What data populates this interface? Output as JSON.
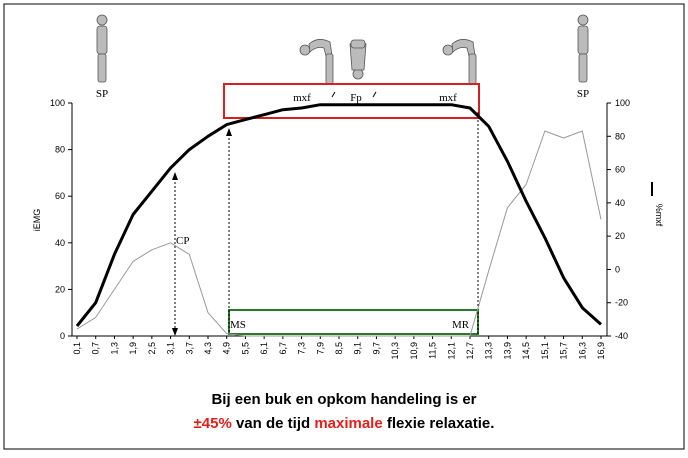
{
  "chart_data": {
    "type": "line",
    "categories": [
      "0,1",
      "0,7",
      "1,3",
      "1,9",
      "2,5",
      "3,1",
      "3,7",
      "4,3",
      "4,9",
      "5,5",
      "6,1",
      "6,7",
      "7,3",
      "7,9",
      "8,5",
      "9,1",
      "9,7",
      "10,3",
      "10,9",
      "11,5",
      "12,1",
      "12,7",
      "13,3",
      "13,9",
      "14,5",
      "15,1",
      "15,7",
      "16,3",
      "16,9"
    ],
    "ylabel": "iEMG",
    "y2label": "%mxf",
    "ylim": [
      0,
      100
    ],
    "yticks": [
      0,
      20,
      40,
      60,
      80,
      100
    ],
    "y2lim": [
      -40,
      100
    ],
    "y2ticks": [
      -40,
      -20,
      0,
      20,
      40,
      60,
      80,
      100
    ],
    "series": [
      {
        "color": "#999999",
        "width": 1,
        "values": [
          3,
          8,
          20,
          32,
          37,
          40,
          35,
          10,
          1,
          0,
          0,
          0,
          0,
          0,
          0,
          0,
          0,
          0,
          0,
          0,
          0,
          0,
          28,
          55,
          65,
          88,
          85,
          88,
          50
        ]
      },
      {
        "color": "#000000",
        "width": 3,
        "axis": "y2",
        "values": [
          -34,
          -20,
          9,
          33,
          47,
          61,
          72,
          80,
          87,
          90,
          93,
          96,
          97,
          99,
          99,
          99,
          99,
          99,
          99,
          99,
          99,
          97,
          86,
          65,
          41,
          19,
          -5,
          -23,
          -33
        ]
      }
    ],
    "annotations": {
      "sp_left": "SP",
      "sp_right": "SP",
      "mxf_left": "mxf",
      "fp": "Fp",
      "mxf_right": "mxf",
      "cp": "CP",
      "ms": "MS",
      "mr": "MR"
    }
  },
  "caption": {
    "line1": "Bij een buk en opkom handeling is er",
    "line2": [
      {
        "text": "±45%",
        "color": "#e0201b"
      },
      {
        "text": " van de tijd ",
        "color": "#000000"
      },
      {
        "text": "maximale",
        "color": "#e0201b"
      },
      {
        "text": " flexie relaxatie.",
        "color": "#000000"
      }
    ]
  }
}
